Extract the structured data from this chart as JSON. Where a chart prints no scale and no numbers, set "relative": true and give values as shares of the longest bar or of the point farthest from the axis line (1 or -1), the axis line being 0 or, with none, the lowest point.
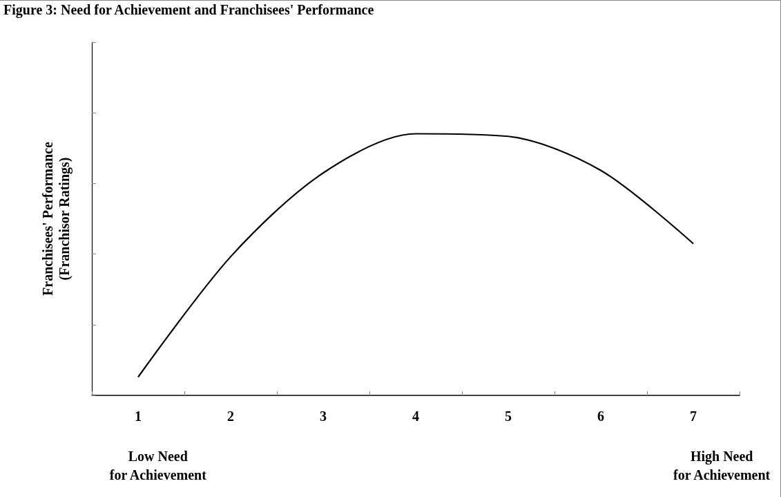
{
  "chart_data": {
    "type": "line",
    "title": "Figure 3: Need for Achievement and Franchisees' Performance",
    "ylabel": "Franchisees' Performance\n(Franchisor Ratings)",
    "categories": [
      "1",
      "2",
      "3",
      "4",
      "5",
      "6",
      "7"
    ],
    "relative": true,
    "series": [
      {
        "color": "#000000",
        "values": [
          0.07,
          0.53,
          0.85,
          1.0,
          0.99,
          0.86,
          0.58
        ]
      }
    ],
    "marker": "none",
    "line_style": "solid",
    "grid": false,
    "annotations": [
      "Low Need\nfor Achievement",
      "High Need\nfor Achievement"
    ]
  }
}
